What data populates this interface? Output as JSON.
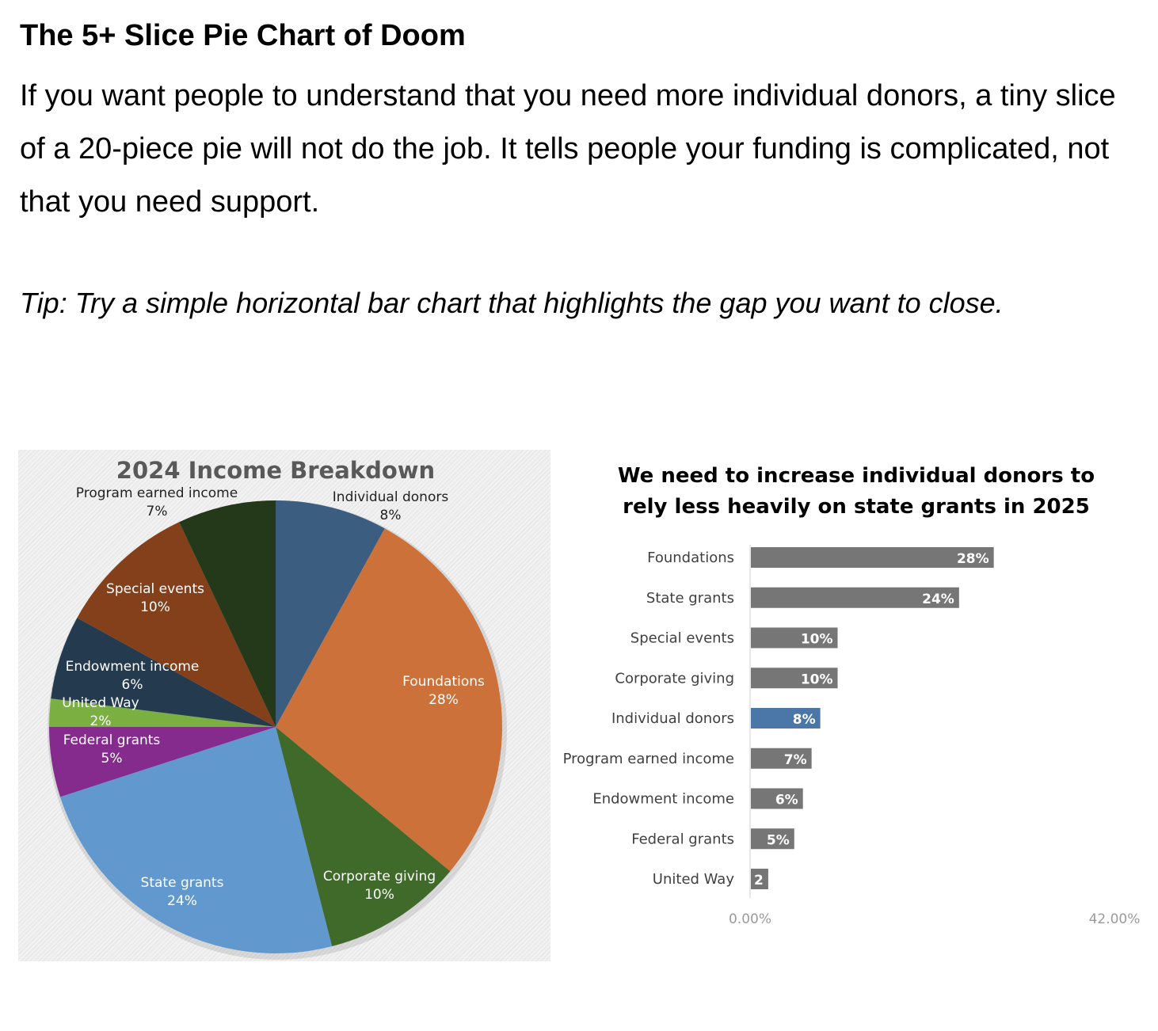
{
  "article": {
    "heading": "The 5+ Slice Pie Chart of Doom",
    "intro": "If you want people to understand that you need more individual donors, a tiny slice of a 20-piece pie will not do the job. It tells people your funding is complicated, not that you need support.",
    "tip": "Tip: Try a simple horizontal bar chart that highlights the gap you want to close."
  },
  "chart_data": [
    {
      "type": "pie",
      "title": "2024 Income Breakdown",
      "categories": [
        "Individual donors",
        "Foundations",
        "Corporate giving",
        "State grants",
        "Federal grants",
        "United Way",
        "Endowment income",
        "Special events",
        "Program earned income"
      ],
      "values": [
        8,
        28,
        10,
        24,
        5,
        2,
        6,
        10,
        7
      ],
      "labels": [
        "8%",
        "28%",
        "10%",
        "24%",
        "5%",
        "2%",
        "6%",
        "10%",
        "7%"
      ],
      "colors": [
        "#3b5d80",
        "#cc7139",
        "#3f6a2a",
        "#6199cf",
        "#852b8e",
        "#7ab042",
        "#243a4f",
        "#843f1b",
        "#23391a"
      ],
      "start_angle_deg": 0,
      "direction": "clockwise"
    },
    {
      "type": "bar",
      "orientation": "horizontal",
      "title": "We need to increase individual donors to rely less heavily on state grants in 2025",
      "title_lines": [
        "We need to increase individual donors to",
        "rely less heavily on state grants in 2025"
      ],
      "categories": [
        "Foundations",
        "State grants",
        "Special events",
        "Corporate giving",
        "Individual donors",
        "Program earned income",
        "Endowment income",
        "Federal grants",
        "United Way"
      ],
      "values": [
        28,
        24,
        10,
        10,
        8,
        7,
        6,
        5,
        2
      ],
      "labels": [
        "28%",
        "24%",
        "10%",
        "10%",
        "8%",
        "7%",
        "6%",
        "5%",
        "2"
      ],
      "highlight": "Individual donors",
      "colors": {
        "default": "#767676",
        "highlight": "#4a76a8"
      },
      "xlim": [
        0,
        42
      ],
      "x_tick_labels": [
        "0.00%",
        "42.00%"
      ]
    }
  ]
}
